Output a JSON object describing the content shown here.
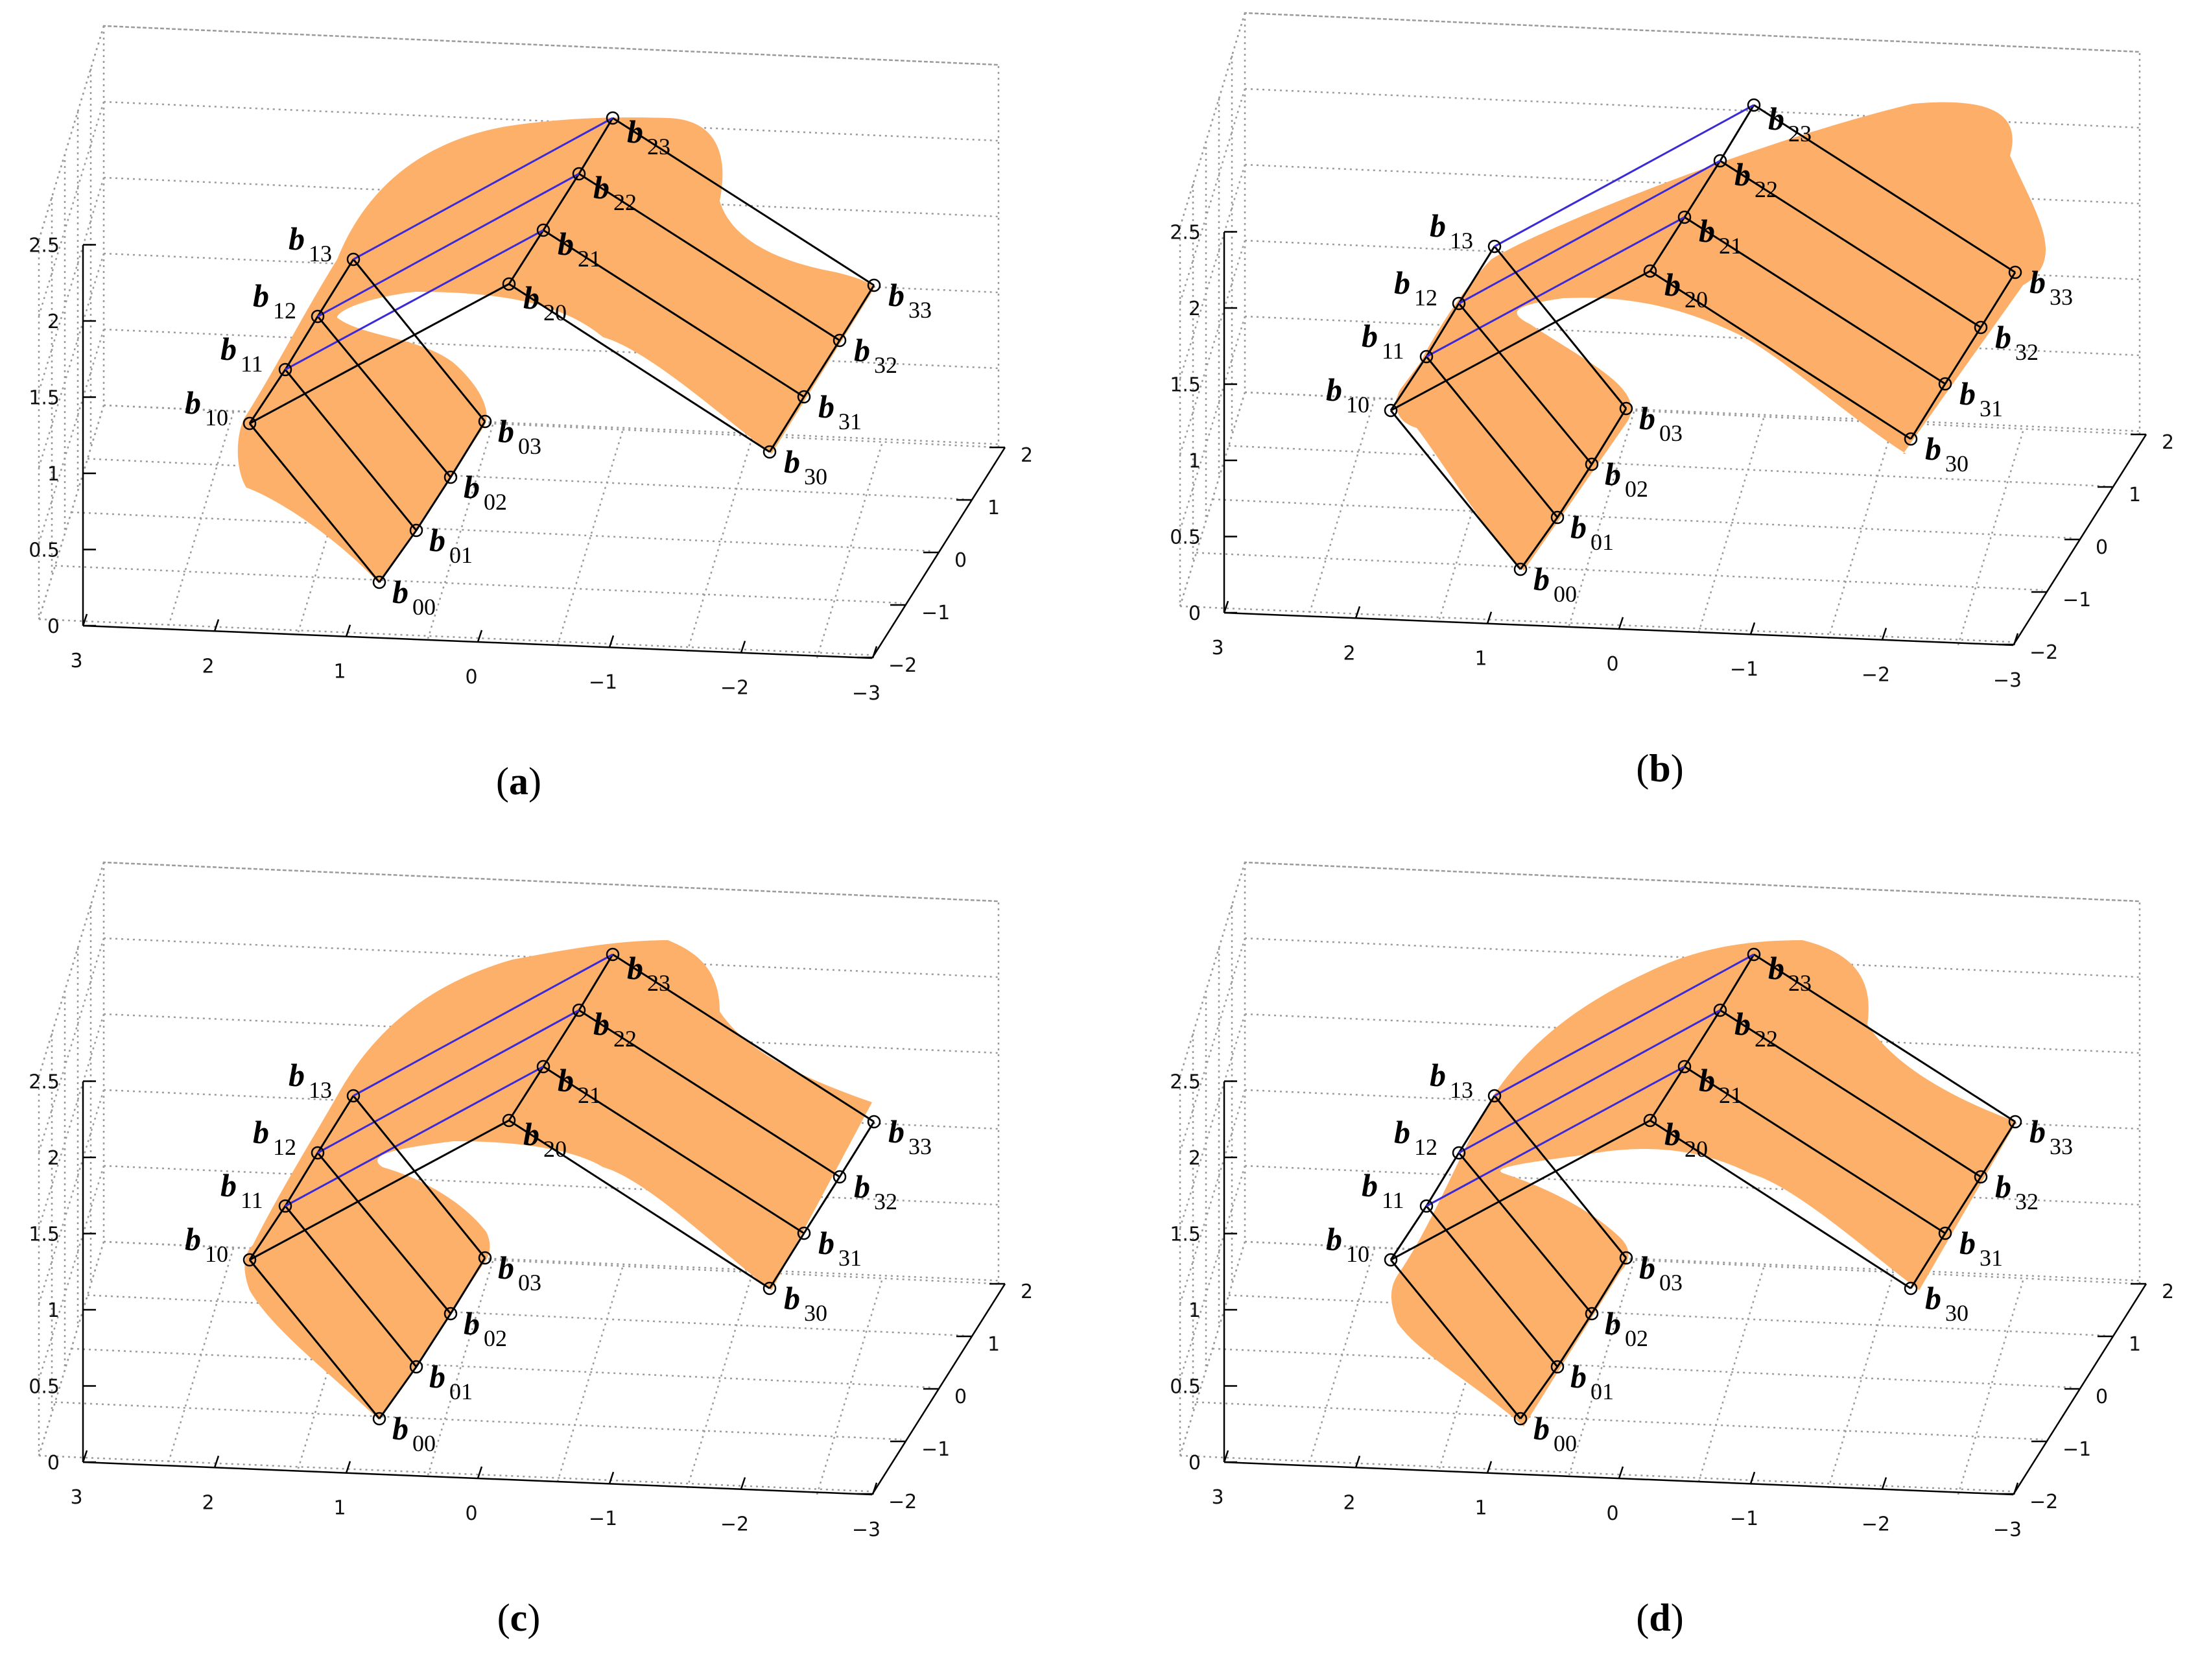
{
  "figure": {
    "panels": [
      {
        "id": "a",
        "caption_open": "(",
        "caption_letter": "a",
        "caption_close": ")",
        "surface_color": "#fdb06a",
        "variant": 0
      },
      {
        "id": "b",
        "caption_open": "(",
        "caption_letter": "b",
        "caption_close": ")",
        "surface_color": "#fdae68",
        "variant": 1
      },
      {
        "id": "c",
        "caption_open": "(",
        "caption_letter": "c",
        "caption_close": ")",
        "surface_color": "#fdb06a",
        "variant": 2
      },
      {
        "id": "d",
        "caption_open": "(",
        "caption_letter": "d",
        "caption_close": ")",
        "surface_color": "#fdb06a",
        "variant": 3
      }
    ],
    "z_axis_ticks": [
      "0",
      "0.5",
      "1",
      "1.5",
      "2",
      "2.5"
    ],
    "x_axis_ticks": [
      "3",
      "2",
      "1",
      "0",
      "−1",
      "−2",
      "−3"
    ],
    "y_axis_ticks": [
      "2",
      "1",
      "0",
      "−1",
      "−2"
    ],
    "control_points": [
      {
        "letter": "b",
        "index": "00"
      },
      {
        "letter": "b",
        "index": "01"
      },
      {
        "letter": "b",
        "index": "02"
      },
      {
        "letter": "b",
        "index": "03"
      },
      {
        "letter": "b",
        "index": "10"
      },
      {
        "letter": "b",
        "index": "11"
      },
      {
        "letter": "b",
        "index": "12"
      },
      {
        "letter": "b",
        "index": "13"
      },
      {
        "letter": "b",
        "index": "20"
      },
      {
        "letter": "b",
        "index": "21"
      },
      {
        "letter": "b",
        "index": "22"
      },
      {
        "letter": "b",
        "index": "23"
      },
      {
        "letter": "b",
        "index": "30"
      },
      {
        "letter": "b",
        "index": "31"
      },
      {
        "letter": "b",
        "index": "32"
      },
      {
        "letter": "b",
        "index": "33"
      }
    ],
    "colors": {
      "grid": "#9a9a9a",
      "axis": "#000000",
      "control_net": "#000000",
      "crease": "#3b2bd6",
      "marker": "#000000"
    }
  }
}
